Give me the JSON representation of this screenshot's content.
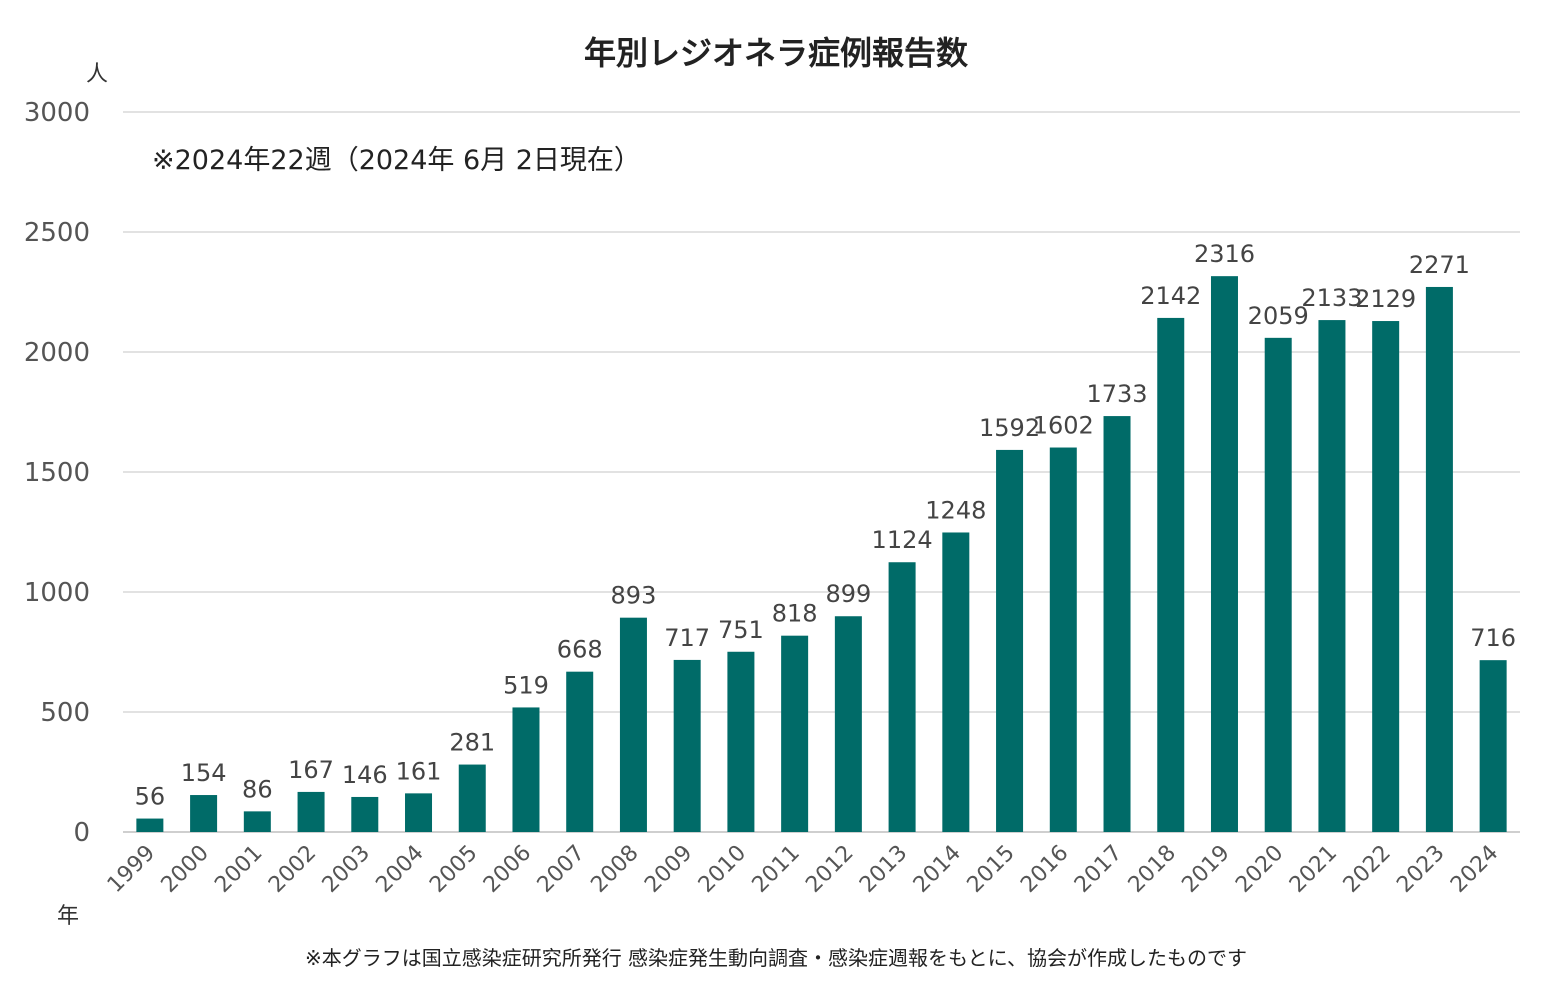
{
  "title": "年別レジオネラ症例報告数",
  "note": "※2024年22週（2024年 6月 2日現在）",
  "footer": "※本グラフは国立感染症研究所発行 感染症発生動向調査・感染症週報をもとに、協会が作成したものです",
  "y_unit": "人",
  "x_unit": "年",
  "colors": {
    "bar": "#006b68",
    "grid": "#d9d9d9",
    "axis": "#bfbfbf"
  },
  "chart_data": {
    "type": "bar",
    "title": "年別レジオネラ症例報告数",
    "xlabel": "年",
    "ylabel": "人",
    "ylim": [
      0,
      3000
    ],
    "yticks": [
      0,
      500,
      1000,
      1500,
      2000,
      2500,
      3000
    ],
    "grid": true,
    "categories": [
      "1999",
      "2000",
      "2001",
      "2002",
      "2003",
      "2004",
      "2005",
      "2006",
      "2007",
      "2008",
      "2009",
      "2010",
      "2011",
      "2012",
      "2013",
      "2014",
      "2015",
      "2016",
      "2017",
      "2018",
      "2019",
      "2020",
      "2021",
      "2022",
      "2023",
      "2024"
    ],
    "values": [
      56,
      154,
      86,
      167,
      146,
      161,
      281,
      519,
      668,
      893,
      717,
      751,
      818,
      899,
      1124,
      1248,
      1592,
      1602,
      1733,
      2142,
      2316,
      2059,
      2133,
      2129,
      2271,
      716
    ]
  }
}
